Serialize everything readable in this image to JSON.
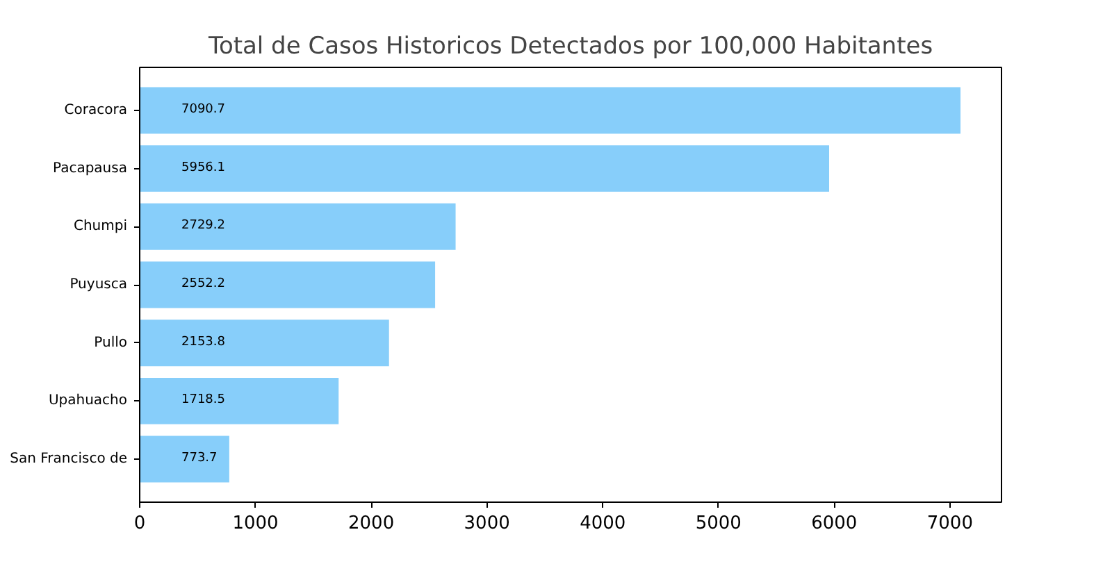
{
  "chart_data": {
    "type": "bar",
    "orientation": "horizontal",
    "title": "Total de Casos Historicos Detectados por 100,000 Habitantes",
    "categories": [
      "Coracora",
      "Pacapausa",
      "Chumpi",
      "Puyusca",
      "Pullo",
      "Upahuacho",
      "San Francisco de"
    ],
    "values": [
      7090.7,
      5956.1,
      2729.2,
      2552.2,
      2153.8,
      1718.5,
      773.7
    ],
    "color": "#87cefa",
    "xlim": [
      0,
      7445
    ],
    "xticks": [
      0,
      1000,
      2000,
      3000,
      4000,
      5000,
      6000,
      7000
    ],
    "data_labels": true
  }
}
